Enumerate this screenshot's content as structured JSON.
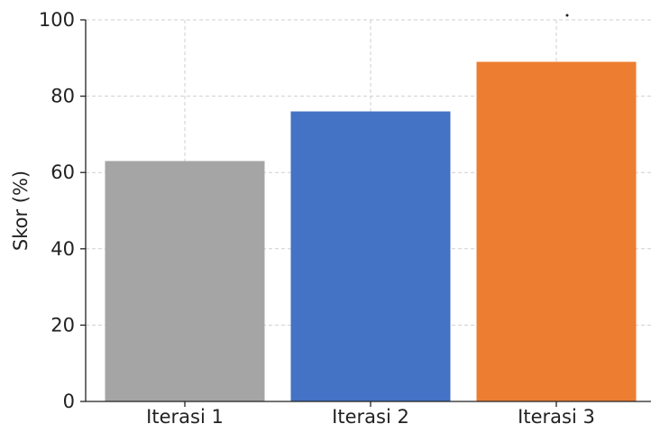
{
  "chart_data": {
    "type": "bar",
    "title": "",
    "xlabel": "",
    "ylabel": "Skor (%)",
    "categories": [
      "Iterasi 1",
      "Iterasi 2",
      "Iterasi 3"
    ],
    "values": [
      63,
      76,
      89
    ],
    "colors": [
      "#a5a5a5",
      "#4472c4",
      "#ed7d31"
    ],
    "ylim": [
      0,
      100
    ],
    "yticks": [
      "0",
      "20",
      "40",
      "60",
      "80",
      "100"
    ],
    "grid": true,
    "legend": "none"
  }
}
